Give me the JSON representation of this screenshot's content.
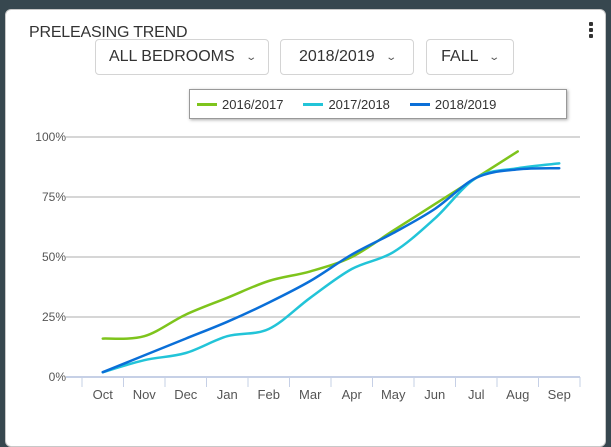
{
  "header": {
    "title": "PRELEASING TREND",
    "menu_icon": "kebab-menu-icon"
  },
  "filters": [
    {
      "value": "ALL BEDROOMS",
      "icon": "chevron-down-icon"
    },
    {
      "value": "2018/2019",
      "icon": "chevron-down-icon"
    },
    {
      "value": "FALL",
      "icon": "chevron-down-icon"
    }
  ],
  "chart_data": {
    "type": "line",
    "title": "",
    "xlabel": "",
    "ylabel": "",
    "categories": [
      "Oct",
      "Nov",
      "Dec",
      "Jan",
      "Feb",
      "Mar",
      "Apr",
      "May",
      "Jun",
      "Jul",
      "Aug",
      "Sep"
    ],
    "ylim": [
      0,
      100
    ],
    "yticks": [
      "0%",
      "25%",
      "50%",
      "75%",
      "100%"
    ],
    "ytick_values": [
      0,
      25,
      50,
      75,
      100
    ],
    "grid": true,
    "legend_position": "top-right",
    "series": [
      {
        "name": "2016/2017",
        "color": "#7ec41c",
        "values": [
          16,
          17,
          26,
          33,
          40,
          44,
          50,
          61,
          72,
          83,
          94,
          null
        ]
      },
      {
        "name": "2017/2018",
        "color": "#22c4d8",
        "values": [
          2,
          7,
          10,
          17,
          20,
          33,
          45,
          52,
          66,
          83,
          87,
          89
        ]
      },
      {
        "name": "2018/2019",
        "color": "#0a6fd8",
        "values": [
          2,
          9,
          16,
          23,
          31,
          40,
          51,
          60,
          70,
          83,
          86.5,
          87
        ]
      }
    ]
  }
}
